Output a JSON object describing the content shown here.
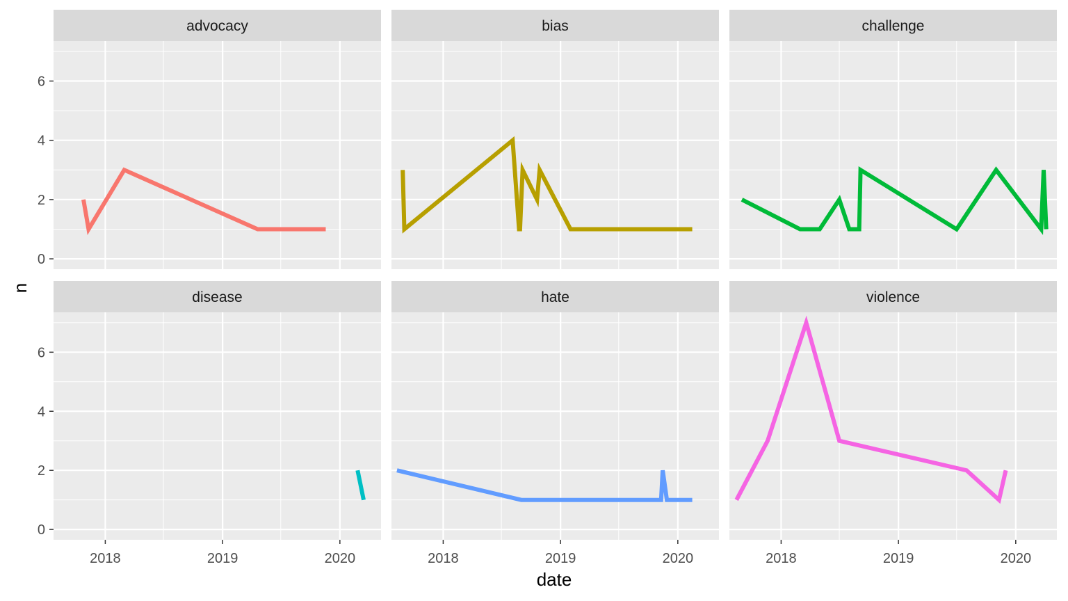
{
  "chart_data": {
    "type": "line",
    "facet_layout": "2x3",
    "xlabel": "date",
    "ylabel": "n",
    "x_ticks": [
      "2018",
      "2019",
      "2020"
    ],
    "y_ticks": [
      0,
      2,
      4,
      6
    ],
    "xlim": [
      "2017-07-24",
      "2020-05-08"
    ],
    "ylim": [
      -0.35,
      7.35
    ],
    "grid": true,
    "legend": "none",
    "panels": [
      {
        "name": "advocacy",
        "color": "#F8766D",
        "x": [
          "2017-10-25",
          "2017-11-10",
          "2018-03-01",
          "2019-04-20",
          "2019-11-18"
        ],
        "y": [
          2,
          1,
          3,
          1,
          1
        ]
      },
      {
        "name": "bias",
        "color": "#B79F00",
        "x": [
          "2017-08-28",
          "2017-09-02",
          "2018-08-05",
          "2018-08-25",
          "2018-08-28",
          "2018-09-05",
          "2018-10-20",
          "2018-10-28",
          "2019-02-01",
          "2020-02-15"
        ],
        "y": [
          3,
          1,
          4,
          1,
          1,
          3,
          2,
          3,
          1,
          1
        ]
      },
      {
        "name": "challenge",
        "color": "#00BA38",
        "x": [
          "2017-09-01",
          "2018-03-01",
          "2018-05-01",
          "2018-07-01",
          "2018-08-01",
          "2018-09-01",
          "2018-09-05",
          "2019-07-01",
          "2019-11-01",
          "2020-03-20",
          "2020-03-28",
          "2020-04-05"
        ],
        "y": [
          2,
          1,
          1,
          2,
          1,
          1,
          3,
          1,
          3,
          1,
          3,
          1
        ]
      },
      {
        "name": "disease",
        "color": "#00BFC4",
        "x": [
          "2020-02-25",
          "2020-03-15"
        ],
        "y": [
          2,
          1
        ]
      },
      {
        "name": "hate",
        "color": "#619CFF",
        "x": [
          "2017-08-10",
          "2018-09-01",
          "2019-11-10",
          "2019-11-15",
          "2019-11-28",
          "2020-02-15"
        ],
        "y": [
          2,
          1,
          1,
          2,
          1,
          1
        ]
      },
      {
        "name": "violence",
        "color": "#F564E3",
        "x": [
          "2017-08-15",
          "2017-11-20",
          "2018-03-20",
          "2018-07-01",
          "2019-08-01",
          "2019-11-10",
          "2019-12-01"
        ],
        "y": [
          1,
          3,
          7,
          3,
          2,
          1,
          2
        ]
      }
    ]
  }
}
